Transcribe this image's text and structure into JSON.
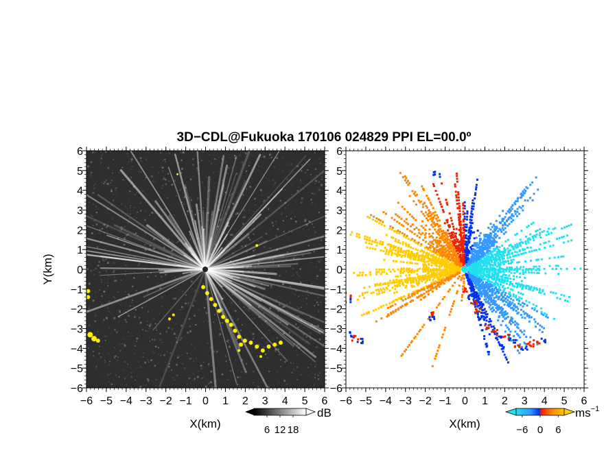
{
  "title": "3D−CDL@Fukuoka 170106 024829 PPI EL=00.0º",
  "chart_data": [
    {
      "type": "heatmap",
      "panel": "reflectivity",
      "xlabel": "X(km)",
      "ylabel": "Y(km)",
      "xlim": [
        -6,
        6
      ],
      "ylim": [
        -6,
        6
      ],
      "xticks": [
        "−6",
        "−5",
        "−4",
        "−3",
        "−2",
        "−1",
        "0",
        "1",
        "2",
        "3",
        "4",
        "5",
        "6"
      ],
      "yticks": [
        "6",
        "5",
        "4",
        "3",
        "2",
        "1",
        "0",
        "−1",
        "−2",
        "−3",
        "−4",
        "−5",
        "−6"
      ],
      "colorbar": {
        "unit": "dB",
        "ticks": [
          "6",
          "12",
          "18"
        ],
        "range": [
          0,
          24
        ]
      },
      "colors": {
        "background": "#2e2e2e",
        "speckle": "#555555",
        "rays": "#e6e6e6",
        "highlight": "#ffee00"
      }
    },
    {
      "type": "heatmap",
      "panel": "doppler-velocity",
      "xlabel": "X(km)",
      "ylabel": "",
      "xlim": [
        -6,
        6
      ],
      "ylim": [
        -6,
        6
      ],
      "xticks": [
        "−6",
        "−5",
        "−4",
        "−3",
        "−2",
        "−1",
        "0",
        "1",
        "2",
        "3",
        "4",
        "5",
        "6"
      ],
      "yticks": [
        "6",
        "5",
        "4",
        "3",
        "2",
        "1",
        "0",
        "−1",
        "−2",
        "−3",
        "−4",
        "−5",
        "−6"
      ],
      "colorbar": {
        "unit": "ms",
        "unit_sup": "−1",
        "ticks": [
          "−6",
          "0",
          "6"
        ],
        "range": [
          -8,
          8
        ]
      },
      "colors": {
        "cyan": "#22e0f0",
        "lightblue": "#3399ff",
        "blue": "#0033ee",
        "red": "#ee2200",
        "orange": "#ff8800",
        "yellow": "#ffcc00"
      }
    }
  ]
}
